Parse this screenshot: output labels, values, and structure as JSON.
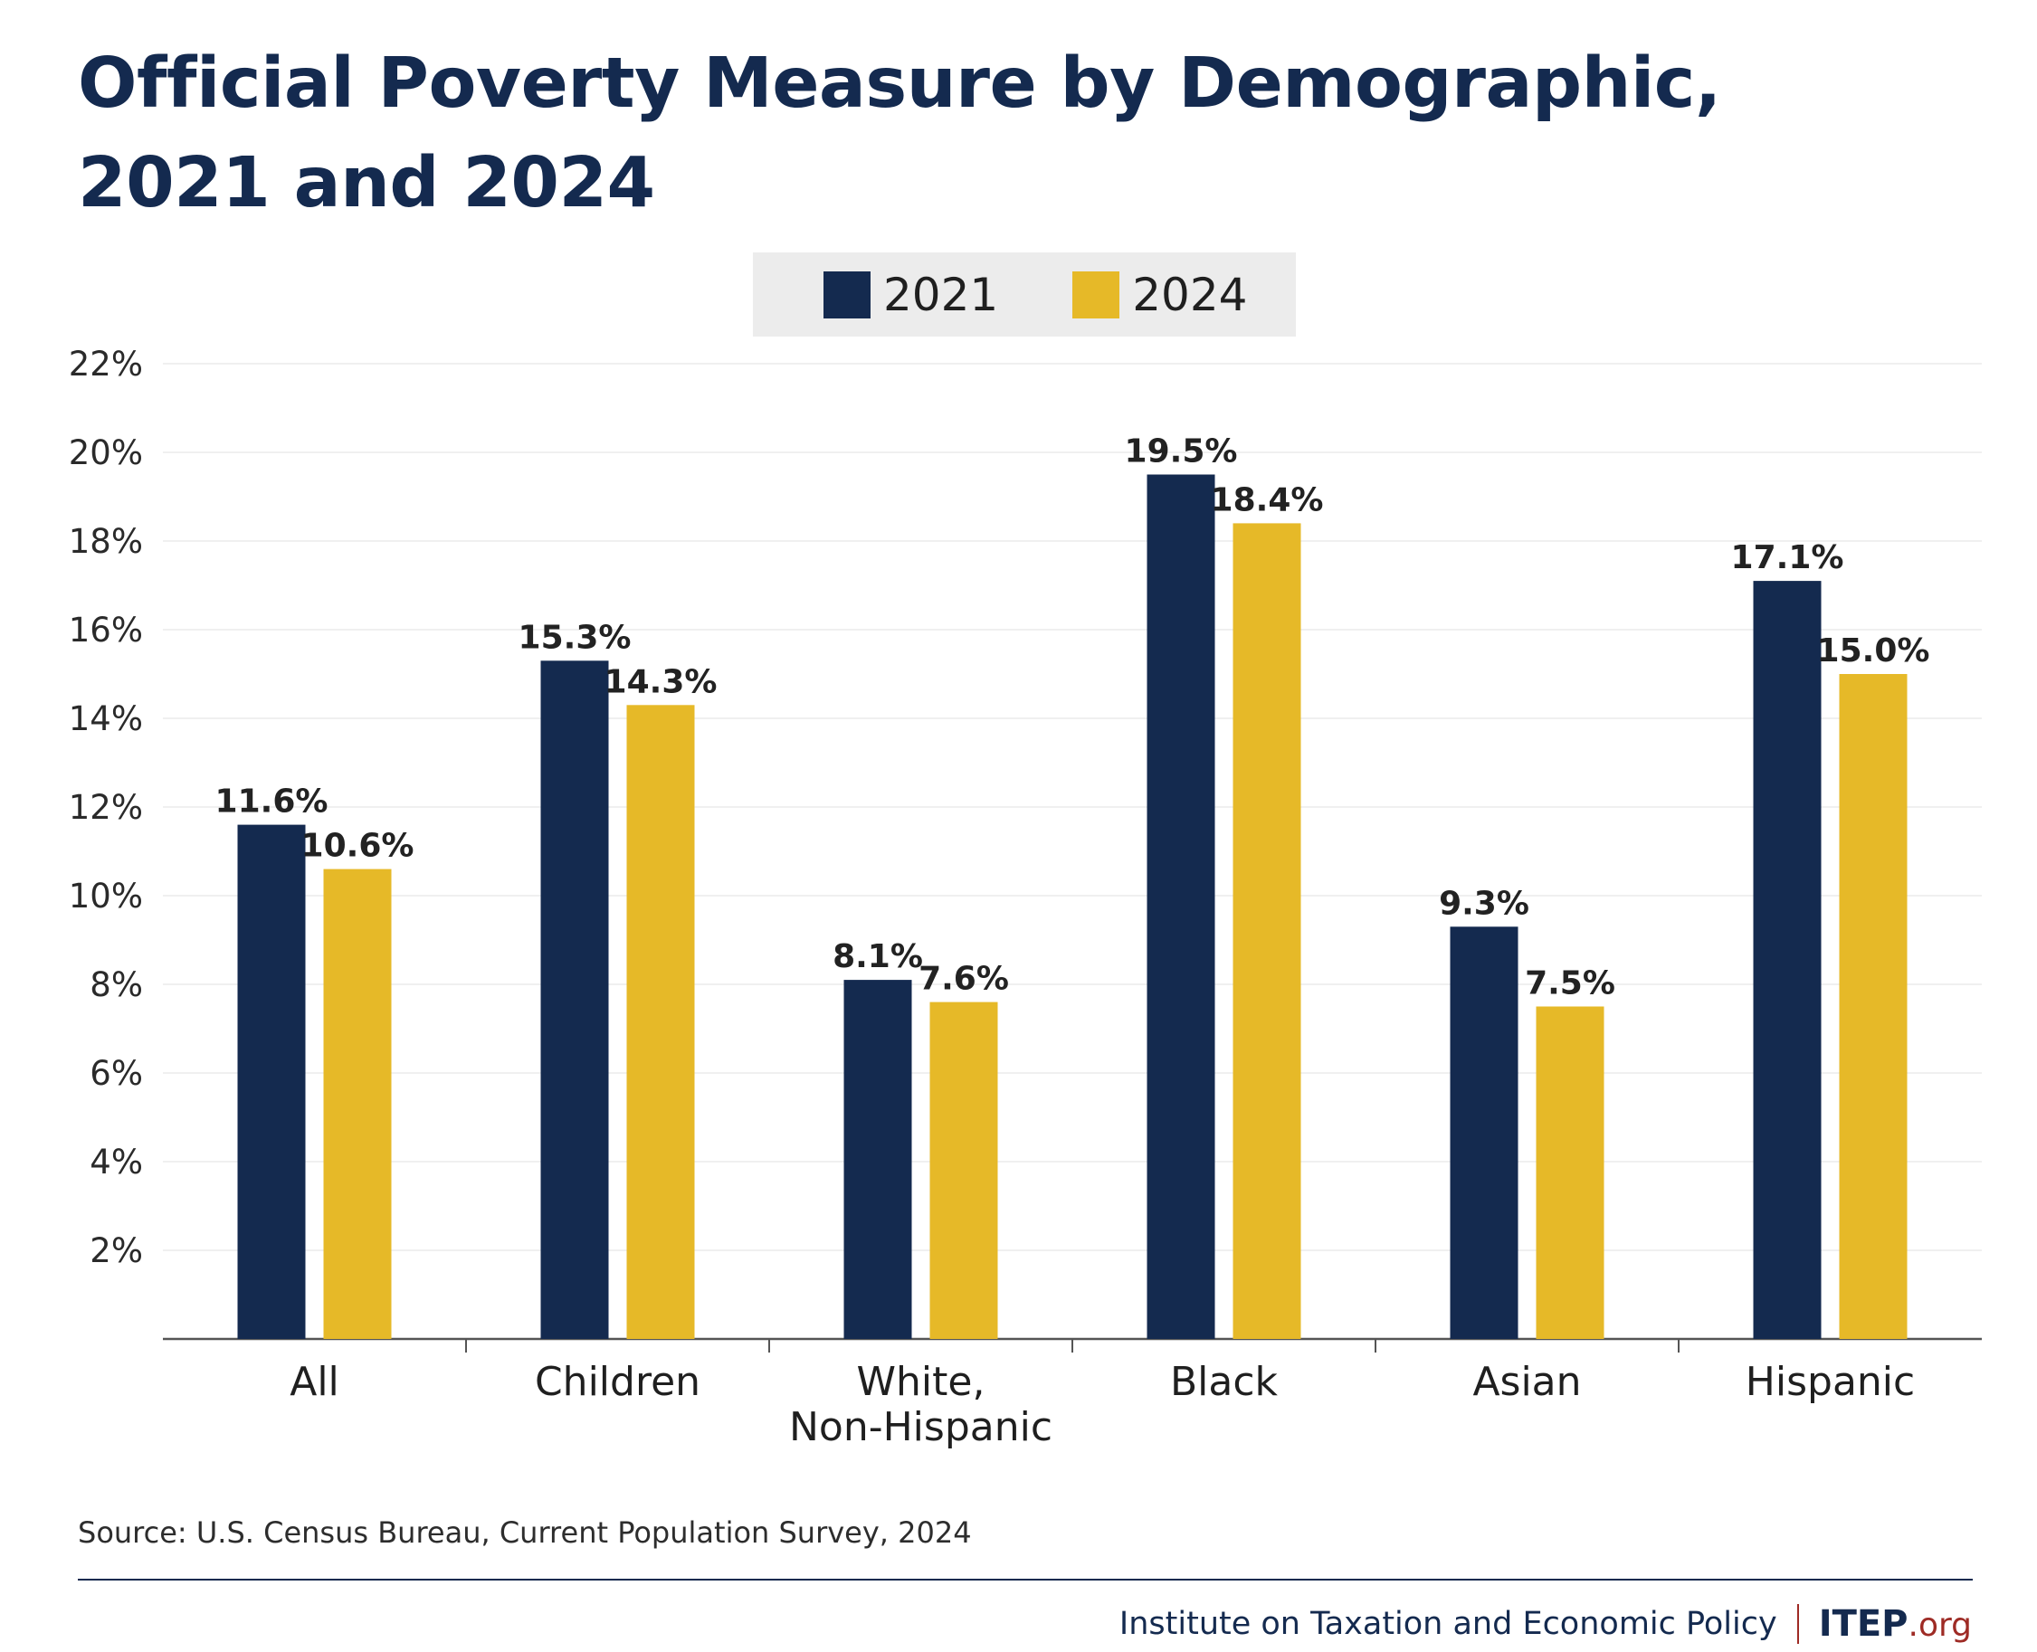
{
  "header": {
    "title_line1": "Official Poverty Measure by Demographic,",
    "title_line2": "2021 and 2024"
  },
  "legend": {
    "items": [
      {
        "label": "2021",
        "color": "#142a4f"
      },
      {
        "label": "2024",
        "color": "#e6b928"
      }
    ]
  },
  "chart_data": {
    "type": "bar",
    "title": "Official Poverty Measure by Demographic, 2021 and 2024",
    "categories": [
      [
        "All"
      ],
      [
        "Children"
      ],
      [
        "White,",
        "Non-Hispanic"
      ],
      [
        "Black"
      ],
      [
        "Asian"
      ],
      [
        "Hispanic"
      ]
    ],
    "series": [
      {
        "name": "2021",
        "color": "#142a4f",
        "values": [
          11.6,
          15.3,
          8.1,
          19.5,
          9.3,
          17.1
        ],
        "labels": [
          "11.6%",
          "15.3%",
          "8.1%",
          "19.5%",
          "9.3%",
          "17.1%"
        ]
      },
      {
        "name": "2024",
        "color": "#e6b928",
        "values": [
          10.6,
          14.3,
          7.6,
          18.4,
          7.5,
          15.0
        ],
        "labels": [
          "10.6%",
          "14.3%",
          "7.6%",
          "18.4%",
          "7.5%",
          "15.0%"
        ]
      }
    ],
    "ylim": [
      0,
      22
    ],
    "yticks": [
      2,
      4,
      6,
      8,
      10,
      12,
      14,
      16,
      18,
      20,
      22
    ],
    "ytick_labels": [
      "2%",
      "4%",
      "6%",
      "8%",
      "10%",
      "12%",
      "14%",
      "16%",
      "18%",
      "20%",
      "22%"
    ],
    "grid": true,
    "legend_position": "top-center",
    "xlabel": "",
    "ylabel": ""
  },
  "source": "Source: U.S. Census Bureau, Current Population Survey, 2024",
  "footer": {
    "org_name": "Institute on Taxation and Economic Policy",
    "logo_main": "ITEP",
    "logo_suffix": ".org"
  }
}
